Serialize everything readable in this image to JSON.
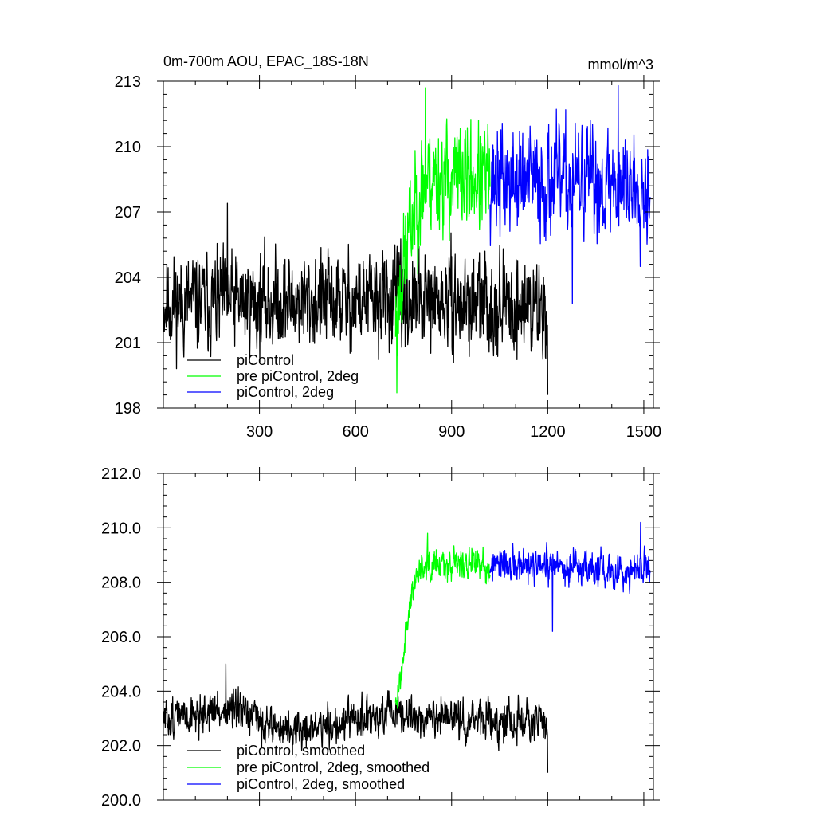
{
  "chart_data": [
    {
      "type": "line",
      "title": "0m-700m AOU, EPAC_18S-18N",
      "units": "mmol/m^3",
      "xlim": [
        0,
        1530
      ],
      "ylim": [
        198,
        213
      ],
      "xticks": [
        300,
        600,
        900,
        1200,
        1500
      ],
      "xtick_labels": [
        "300",
        "600",
        "900",
        "1200",
        "1500"
      ],
      "yticks": [
        198,
        201,
        204,
        207,
        210,
        213
      ],
      "ytick_labels": [
        "198",
        "201",
        "204",
        "207",
        "210",
        "213"
      ],
      "legend_position": "lower-left",
      "series": [
        {
          "name": "piControl",
          "color": "#000000",
          "x_start": 1,
          "x_end": 1200,
          "mean": 203.0,
          "noise": 1.7,
          "seed": 11,
          "segments": [
            [
              1,
              202.8
            ],
            [
              700,
              202.9
            ],
            [
              1200,
              202.6
            ]
          ],
          "extrema": [
            [
              1200,
              198.6
            ],
            [
              200,
              207.4
            ]
          ]
        },
        {
          "name": "pre piControl, 2deg",
          "color": "#00ff00",
          "x_start": 725,
          "x_end": 1020,
          "mean": 208.3,
          "noise": 1.9,
          "seed": 23,
          "segments": [
            [
              725,
              202.0
            ],
            [
              760,
              205.5
            ],
            [
              790,
              207.5
            ],
            [
              820,
              208.6
            ],
            [
              1020,
              208.5
            ]
          ],
          "extrema": [
            [
              729,
              198.7
            ],
            [
              818,
              212.7
            ]
          ]
        },
        {
          "name": "piControl, 2deg",
          "color": "#0000ff",
          "x_start": 1020,
          "x_end": 1520,
          "mean": 208.2,
          "noise": 1.9,
          "seed": 37,
          "segments": [
            [
              1020,
              208.4
            ],
            [
              1520,
              208.3
            ]
          ],
          "extrema": [
            [
              1277,
              202.8
            ],
            [
              1420,
              212.8
            ]
          ]
        }
      ]
    },
    {
      "type": "line",
      "title": "",
      "units": "",
      "xlim": [
        0,
        1530
      ],
      "ylim": [
        200,
        212
      ],
      "xticks": [
        300,
        600,
        900,
        1200,
        1500
      ],
      "xtick_labels": [],
      "yticks": [
        200,
        202,
        204,
        206,
        208,
        210,
        212
      ],
      "ytick_labels": [
        "200.0",
        "202.0",
        "204.0",
        "206.0",
        "208.0",
        "210.0",
        "212.0"
      ],
      "legend_position": "lower-left",
      "series": [
        {
          "name": "piControl, smoothed",
          "color": "#000000",
          "x_start": 1,
          "x_end": 1200,
          "mean": 203.0,
          "noise": 0.55,
          "seed": 51,
          "segments": [
            [
              1,
              203.0
            ],
            [
              200,
              203.3
            ],
            [
              400,
              202.5
            ],
            [
              700,
              203.1
            ],
            [
              1200,
              202.8
            ]
          ],
          "extrema": [
            [
              1200,
              201.0
            ],
            [
              195,
              205.0
            ]
          ]
        },
        {
          "name": "pre piControl, 2deg, smoothed",
          "color": "#00ff00",
          "x_start": 725,
          "x_end": 1020,
          "mean": 208.3,
          "noise": 0.45,
          "seed": 63,
          "segments": [
            [
              725,
              203.2
            ],
            [
              760,
              206.5
            ],
            [
              790,
              208.3
            ],
            [
              820,
              208.8
            ],
            [
              1020,
              208.6
            ]
          ],
          "extrema": [
            [
              825,
              209.8
            ]
          ]
        },
        {
          "name": "piControl, 2deg, smoothed",
          "color": "#0000ff",
          "x_start": 1020,
          "x_end": 1520,
          "mean": 208.4,
          "noise": 0.5,
          "seed": 77,
          "segments": [
            [
              1020,
              208.6
            ],
            [
              1520,
              208.4
            ]
          ],
          "extrema": [
            [
              1215,
              206.2
            ],
            [
              1490,
              210.2
            ]
          ]
        }
      ]
    }
  ]
}
